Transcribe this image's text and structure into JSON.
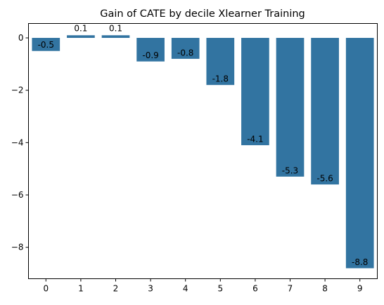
{
  "chart_data": {
    "type": "bar",
    "title": "Gain of CATE by decile Xlearner Training",
    "xlabel": "",
    "ylabel": "",
    "categories": [
      "0",
      "1",
      "2",
      "3",
      "4",
      "5",
      "6",
      "7",
      "8",
      "9"
    ],
    "values": [
      -0.5,
      0.1,
      0.1,
      -0.9,
      -0.8,
      -1.8,
      -4.1,
      -5.3,
      -5.6,
      -8.8
    ],
    "data_labels": [
      "-0.5",
      "0.1",
      "0.1",
      "-0.9",
      "-0.8",
      "-1.8",
      "-4.1",
      "-5.3",
      "-5.6",
      "-8.8"
    ],
    "yticks": [
      0,
      -2,
      -4,
      -6,
      -8
    ],
    "ytick_labels": [
      "0",
      "−2",
      "−4",
      "−6",
      "−8"
    ],
    "ylim": [
      -9.2,
      0.55
    ],
    "bar_color": "#3274a1",
    "grid": false,
    "legend": "none"
  }
}
